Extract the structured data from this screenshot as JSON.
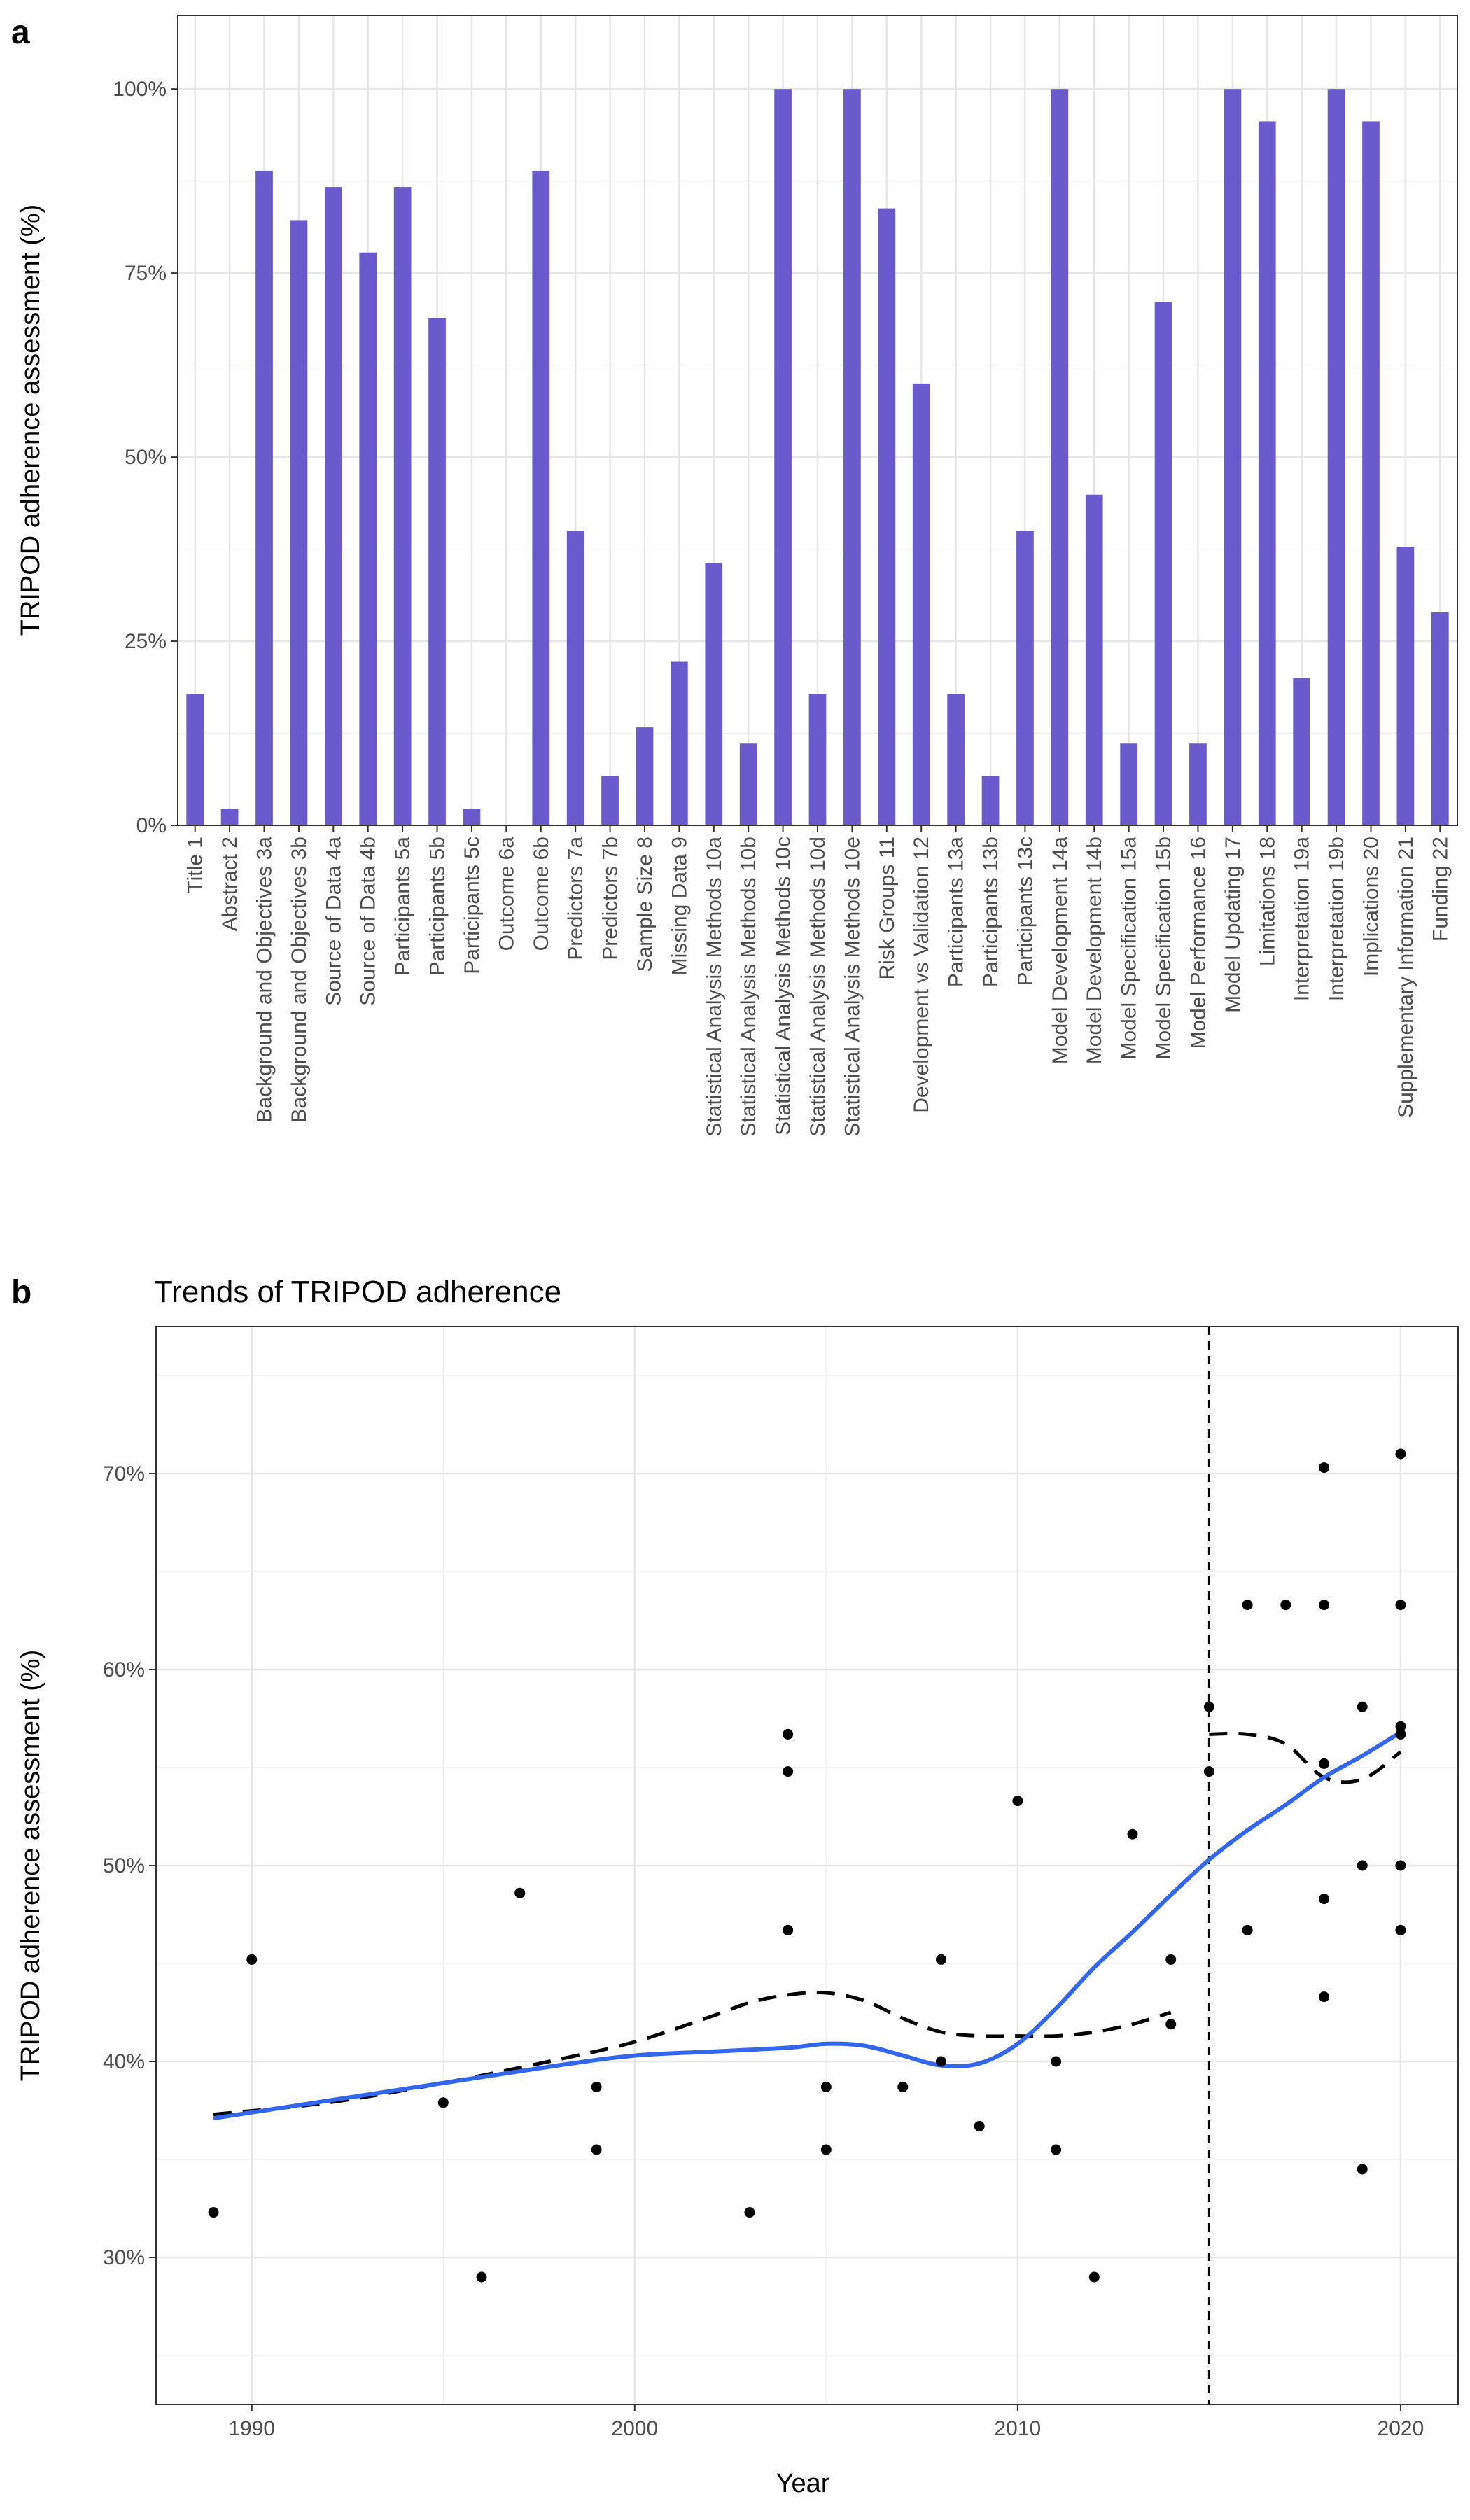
{
  "chart_data": [
    {
      "panel_label": "a",
      "type": "bar",
      "title": "",
      "xlabel": "",
      "ylabel": "TRIPOD adherence assessment (%)",
      "ylim": [
        0,
        110
      ],
      "yticks": [
        0,
        25,
        50,
        75,
        100
      ],
      "ytick_labels": [
        "0%",
        "25%",
        "50%",
        "75%",
        "100%"
      ],
      "bar_color": "#6a5acd",
      "grid": true,
      "categories": [
        "Title 1",
        "Abstract 2",
        "Background and Objectives 3a",
        "Background and Objectives 3b",
        "Source of Data 4a",
        "Source of Data 4b",
        "Participants 5a",
        "Participants 5b",
        "Participants 5c",
        "Outcome 6a",
        "Outcome 6b",
        "Predictors 7a",
        "Predictors 7b",
        "Sample Size 8",
        "Missing Data 9",
        "Statistical Analysis Methods 10a",
        "Statistical Analysis Methods 10b",
        "Statistical Analysis Methods 10c",
        "Statistical Analysis Methods 10d",
        "Statistical Analysis Methods 10e",
        "Risk Groups 11",
        "Development vs Validation 12",
        "Participants 13a",
        "Participants 13b",
        "Participants 13c",
        "Model Development 14a",
        "Model Development 14b",
        "Model Specification 15a",
        "Model Specification 15b",
        "Model Performance 16",
        "Model Updating 17",
        "Limitations 18",
        "Interpretation 19a",
        "Interpretation 19b",
        "Implications 20",
        "Supplementary Information 21",
        "Funding 22"
      ],
      "values": [
        17.8,
        2.2,
        88.9,
        82.2,
        86.7,
        77.8,
        86.7,
        68.9,
        2.2,
        0,
        88.9,
        40.0,
        6.7,
        13.3,
        22.2,
        35.6,
        11.1,
        100,
        17.8,
        100,
        83.8,
        60.0,
        17.8,
        6.7,
        40.0,
        100,
        44.9,
        11.1,
        71.1,
        11.1,
        100,
        95.6,
        20.0,
        100,
        95.6,
        37.8,
        28.9
      ]
    },
    {
      "panel_label": "b",
      "type": "scatter",
      "title": "Trends of TRIPOD adherence",
      "xlabel": "Year",
      "ylabel": "TRIPOD adherence assessment (%)",
      "xlim": [
        1987.5,
        2021.5
      ],
      "ylim": [
        22.5,
        77.5
      ],
      "xticks": [
        1990,
        2000,
        2010,
        2020
      ],
      "xtick_labels": [
        "1990",
        "2000",
        "2010",
        "2020"
      ],
      "yticks": [
        30,
        40,
        50,
        60,
        70
      ],
      "ytick_labels": [
        "30%",
        "40%",
        "50%",
        "60%",
        "70%"
      ],
      "grid": true,
      "points": [
        [
          1989,
          32.3
        ],
        [
          1990,
          45.2
        ],
        [
          1995,
          37.9
        ],
        [
          1996,
          29.0
        ],
        [
          1997,
          48.6
        ],
        [
          1999,
          38.7
        ],
        [
          1999,
          35.5
        ],
        [
          2003,
          32.3
        ],
        [
          2004,
          56.7
        ],
        [
          2004,
          54.8
        ],
        [
          2004,
          46.7
        ],
        [
          2005,
          38.7
        ],
        [
          2005,
          35.5
        ],
        [
          2007,
          38.7
        ],
        [
          2008,
          45.2
        ],
        [
          2008,
          40.0
        ],
        [
          2009,
          36.7
        ],
        [
          2010,
          53.3
        ],
        [
          2011,
          40.0
        ],
        [
          2011,
          35.5
        ],
        [
          2012,
          29.0
        ],
        [
          2013,
          51.6
        ],
        [
          2014,
          45.2
        ],
        [
          2014,
          41.9
        ],
        [
          2015,
          58.1
        ],
        [
          2015,
          54.8
        ],
        [
          2016,
          63.3
        ],
        [
          2016,
          46.7
        ],
        [
          2017,
          63.3
        ],
        [
          2018,
          70.3
        ],
        [
          2018,
          63.3
        ],
        [
          2018,
          55.2
        ],
        [
          2018,
          48.3
        ],
        [
          2018,
          43.3
        ],
        [
          2019,
          58.1
        ],
        [
          2019,
          50.0
        ],
        [
          2019,
          34.5
        ],
        [
          2020,
          71.0
        ],
        [
          2020,
          63.3
        ],
        [
          2020,
          57.1
        ],
        [
          2020,
          56.7
        ],
        [
          2020,
          50.0
        ],
        [
          2020,
          46.7
        ]
      ],
      "trend_solid": {
        "color": "#3366ee",
        "x": [
          1989,
          1992,
          1995,
          1998,
          2000,
          2002,
          2004,
          2005,
          2006,
          2007,
          2008,
          2009,
          2010,
          2011,
          2012,
          2013,
          2014,
          2015,
          2016,
          2017,
          2018,
          2019,
          2020
        ],
        "y": [
          37.1,
          38.0,
          38.9,
          39.8,
          40.3,
          40.5,
          40.7,
          40.9,
          40.8,
          40.3,
          39.8,
          39.9,
          40.9,
          42.7,
          44.8,
          46.6,
          48.5,
          50.3,
          51.8,
          53.1,
          54.5,
          55.6,
          56.8
        ]
      },
      "trend_dashed_pre": {
        "x": [
          1989,
          1992,
          1995,
          1998,
          2000,
          2002,
          2003,
          2004,
          2005,
          2006,
          2007,
          2008,
          2009,
          2010,
          2011,
          2012,
          2013,
          2014
        ],
        "y": [
          37.3,
          37.9,
          38.9,
          40.1,
          41.0,
          42.3,
          43.0,
          43.4,
          43.5,
          43.1,
          42.2,
          41.5,
          41.3,
          41.3,
          41.3,
          41.5,
          41.9,
          42.5
        ]
      },
      "trend_dashed_post": {
        "x": [
          2015,
          2016,
          2017,
          2018,
          2019,
          2020
        ],
        "y": [
          56.7,
          56.7,
          56.2,
          54.5,
          54.4,
          55.8
        ]
      },
      "vline_x": 2015
    }
  ]
}
